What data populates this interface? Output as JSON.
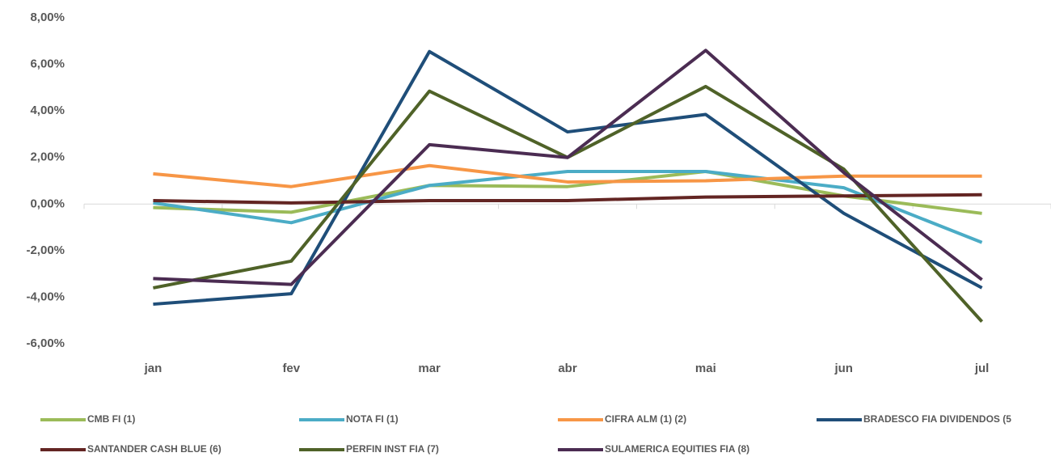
{
  "chart_data": {
    "type": "line",
    "categories": [
      "jan",
      "fev",
      "mar",
      "abr",
      "mai",
      "jun",
      "jul"
    ],
    "series": [
      {
        "name": "CMB FI (1)",
        "color": "#9bbb59",
        "values": [
          -0.15,
          -0.35,
          0.8,
          0.75,
          1.4,
          0.35,
          -0.4
        ]
      },
      {
        "name": "NOTA FI (1)",
        "color": "#4bacc6",
        "values": [
          0.05,
          -0.8,
          0.8,
          1.4,
          1.4,
          0.7,
          -1.65
        ]
      },
      {
        "name": "CIFRA ALM (1) (2)",
        "color": "#f79646",
        "values": [
          1.3,
          0.75,
          1.65,
          0.95,
          1.0,
          1.2,
          1.2
        ]
      },
      {
        "name": "BRADESCO FIA DIVIDENDOS (5",
        "color": "#1f4e79",
        "values": [
          -4.3,
          -3.85,
          6.55,
          3.1,
          3.85,
          -0.4,
          -3.6
        ]
      },
      {
        "name": "SANTANDER CASH BLUE (6)",
        "color": "#632523",
        "values": [
          0.15,
          0.05,
          0.15,
          0.15,
          0.3,
          0.35,
          0.4
        ]
      },
      {
        "name": "PERFIN INST FIA (7)",
        "color": "#4f6228",
        "values": [
          -3.6,
          -2.45,
          4.85,
          2.0,
          5.05,
          1.5,
          -5.05
        ]
      },
      {
        "name": "SULAMERICA EQUITIES FIA (8)",
        "color": "#4b2c52",
        "values": [
          -3.2,
          -3.45,
          2.55,
          2.0,
          6.6,
          1.35,
          -3.25
        ]
      }
    ],
    "ylim": [
      -6,
      8
    ],
    "yticks": [
      {
        "value": -6,
        "label": "-6,00%"
      },
      {
        "value": -4,
        "label": "-4,00%"
      },
      {
        "value": -2,
        "label": "-2,00%"
      },
      {
        "value": 0,
        "label": "0,00%"
      },
      {
        "value": 2,
        "label": "2,00%"
      },
      {
        "value": 4,
        "label": "4,00%"
      },
      {
        "value": 6,
        "label": "6,00%"
      },
      {
        "value": 8,
        "label": "8,00%"
      }
    ],
    "grid": false,
    "legend": "bottom"
  }
}
